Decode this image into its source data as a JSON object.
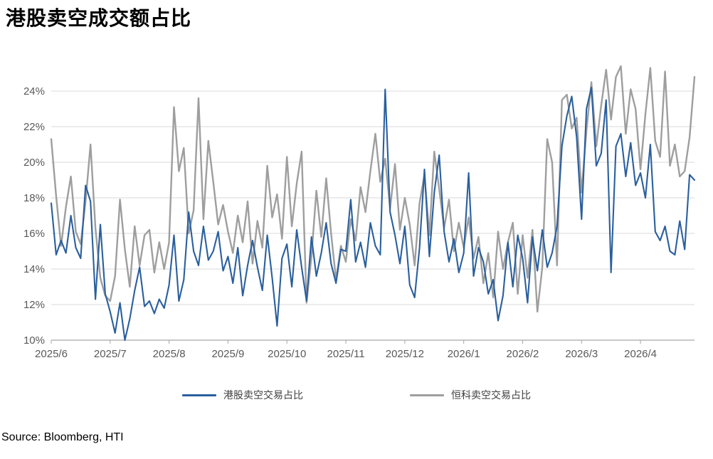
{
  "page": {
    "title": "港股卖空成交额占比",
    "source": "Source: Bloomberg, HTI"
  },
  "chart_data": {
    "type": "line",
    "title": "港股卖空成交额占比",
    "x_labels": [
      "2025/6",
      "2025/7",
      "2025/8",
      "2025/9",
      "2025/10",
      "2025/11",
      "2025/12",
      "2026/1",
      "2026/2",
      "2026/3",
      "2026/4"
    ],
    "points_per_month": 12,
    "yticks": [
      10,
      12,
      14,
      16,
      18,
      20,
      22,
      24
    ],
    "ytick_suffix": "%",
    "ylim": [
      10,
      25.6
    ],
    "grid": "horizontal",
    "legend_position": "bottom",
    "colors": {
      "hk": "#2A5F9E",
      "hstech": "#9E9E9E",
      "gridline": "#D9D9D9",
      "axis": "#A6A6A6",
      "tick_text": "#595959"
    },
    "series": [
      {
        "name": "港股卖空交易占比",
        "color": "#2A5F9E",
        "values": [
          17.7,
          14.8,
          15.6,
          14.9,
          17.0,
          15.2,
          14.6,
          18.7,
          17.8,
          12.3,
          16.5,
          12.6,
          11.6,
          10.4,
          12.1,
          10.0,
          11.2,
          12.8,
          14.1,
          11.9,
          12.2,
          11.5,
          12.3,
          11.8,
          13.1,
          15.9,
          12.2,
          13.4,
          17.2,
          15.0,
          14.2,
          16.4,
          14.5,
          15.0,
          16.1,
          13.9,
          14.7,
          13.2,
          15.2,
          12.5,
          14.2,
          15.6,
          14.1,
          12.8,
          15.9,
          13.5,
          10.8,
          14.6,
          15.4,
          13.0,
          16.2,
          14.1,
          12.2,
          15.8,
          13.6,
          14.9,
          16.6,
          14.3,
          13.2,
          15.1,
          15.0,
          17.9,
          14.4,
          15.5,
          14.1,
          16.6,
          15.3,
          14.8,
          24.1,
          17.2,
          15.9,
          14.3,
          16.4,
          13.1,
          12.4,
          15.2,
          19.6,
          14.7,
          18.3,
          20.4,
          16.1,
          14.4,
          15.7,
          13.8,
          14.9,
          19.4,
          13.6,
          15.2,
          14.4,
          12.6,
          13.4,
          11.1,
          12.5,
          15.5,
          13.0,
          15.9,
          14.6,
          12.1,
          15.8,
          13.9,
          16.2,
          14.1,
          14.9,
          16.4,
          20.9,
          22.6,
          23.7,
          21.4,
          16.8,
          23.0,
          24.2,
          19.8,
          20.5,
          23.5,
          13.8,
          20.9,
          21.6,
          19.2,
          21.1,
          18.7,
          19.4,
          18.0,
          21.0,
          16.1,
          15.6,
          16.4,
          15.0,
          14.8,
          16.7,
          15.1,
          19.3,
          19.0
        ]
      },
      {
        "name": "恒科卖空交易占比",
        "color": "#9E9E9E",
        "values": [
          21.3,
          18.1,
          15.3,
          17.5,
          19.2,
          16.1,
          15.4,
          17.8,
          21.0,
          16.3,
          13.5,
          12.5,
          12.2,
          13.6,
          17.9,
          15.1,
          13.0,
          16.4,
          14.2,
          15.9,
          16.2,
          13.8,
          15.5,
          14.0,
          15.5,
          23.1,
          19.5,
          20.8,
          16.0,
          17.3,
          23.6,
          16.8,
          21.2,
          18.9,
          16.5,
          17.6,
          16.1,
          14.9,
          17.0,
          15.5,
          17.8,
          14.3,
          16.7,
          15.2,
          19.8,
          16.9,
          18.2,
          15.7,
          20.3,
          16.4,
          18.8,
          20.6,
          12.1,
          14.7,
          18.4,
          15.8,
          19.1,
          16.0,
          13.4,
          15.3,
          14.4,
          16.8,
          15.6,
          18.6,
          17.2,
          19.5,
          21.6,
          18.9,
          20.2,
          17.4,
          19.9,
          16.2,
          18.0,
          16.5,
          14.2,
          17.7,
          19.3,
          15.9,
          20.6,
          18.5,
          16.3,
          17.9,
          15.0,
          16.6,
          15.2,
          16.9,
          14.6,
          15.8,
          13.2,
          14.9,
          12.4,
          16.1,
          14.0,
          15.5,
          16.6,
          12.6,
          15.9,
          13.5,
          16.2,
          11.6,
          14.1,
          21.3,
          20.0,
          14.2,
          23.5,
          23.8,
          21.9,
          22.5,
          18.3,
          21.8,
          24.5,
          20.9,
          23.2,
          25.2,
          22.4,
          24.8,
          25.4,
          21.6,
          24.1,
          23.0,
          19.6,
          22.7,
          25.3,
          21.2,
          20.3,
          25.1,
          19.8,
          21.0,
          19.2,
          19.5,
          21.4,
          24.8
        ]
      }
    ]
  }
}
